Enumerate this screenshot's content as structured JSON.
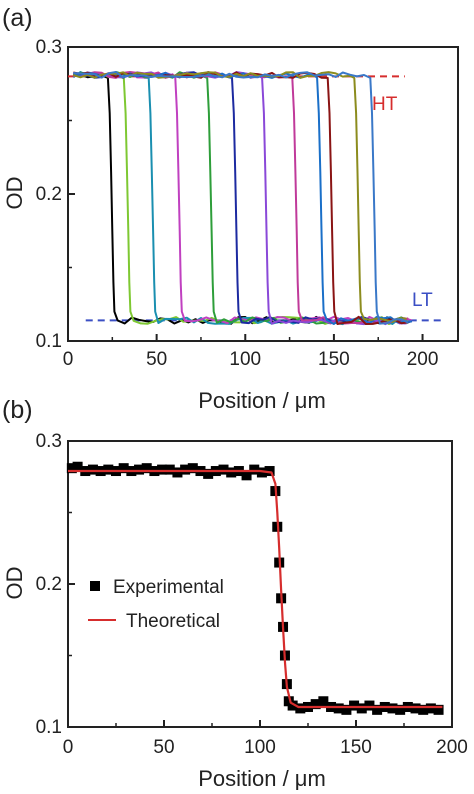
{
  "chart_data": [
    {
      "type": "line",
      "panel_label": "(a)",
      "xlabel": "Position / μm",
      "ylabel": "OD",
      "xlim": [
        0,
        220
      ],
      "ylim": [
        0.1,
        0.3
      ],
      "xticks": [
        0,
        50,
        100,
        150,
        200
      ],
      "yticks": [
        0.1,
        0.2,
        0.3
      ],
      "xtick_labels": [
        "0",
        "50",
        "100",
        "150",
        "200"
      ],
      "ytick_labels": [
        "0.1",
        "0.2",
        "0.3"
      ],
      "grid": false,
      "colors": [
        "#000000",
        "#7ec832",
        "#1a8fb0",
        "#c040c0",
        "#2e9e3a",
        "#1c2aa0",
        "#8a48d8",
        "#c03a9a",
        "#1a6fc8",
        "#8a1414",
        "#8c8c1e",
        "#3a78c8"
      ],
      "transition_positions": [
        24,
        33,
        47,
        62,
        80,
        94,
        111,
        128,
        142,
        148,
        163,
        172
      ],
      "high_level": 0.281,
      "low_level": 0.114,
      "reference_lines": [
        {
          "label": "HT",
          "y": 0.28,
          "x_range": [
            0,
            190
          ],
          "color": "#d62d2d"
        },
        {
          "label": "LT",
          "y": 0.114,
          "x_range": [
            10,
            212
          ],
          "color": "#3b4fc4"
        }
      ]
    },
    {
      "type": "scatter",
      "panel_label": "(b)",
      "xlabel": "Position / μm",
      "ylabel": "OD",
      "xlim": [
        0,
        200
      ],
      "ylim": [
        0.1,
        0.3
      ],
      "xticks": [
        0,
        50,
        100,
        150,
        200
      ],
      "yticks": [
        0.1,
        0.2,
        0.3
      ],
      "xtick_labels": [
        "0",
        "50",
        "100",
        "150",
        "200"
      ],
      "ytick_labels": [
        "0.1",
        "0.2",
        "0.3"
      ],
      "grid": false,
      "legend": "center-left",
      "series": [
        {
          "name": "Experimental",
          "marker": "square",
          "color": "#000000",
          "x": [
            2,
            5,
            9,
            13,
            17,
            21,
            25,
            29,
            33,
            37,
            41,
            45,
            49,
            53,
            57,
            61,
            65,
            69,
            73,
            77,
            81,
            85,
            89,
            93,
            97,
            101,
            105,
            108,
            109,
            110,
            111,
            112,
            113,
            114,
            115,
            117,
            121,
            125,
            129,
            133,
            137,
            141,
            145,
            149,
            153,
            157,
            161,
            165,
            169,
            173,
            177,
            181,
            185,
            189,
            193
          ],
          "y": [
            0.281,
            0.282,
            0.279,
            0.28,
            0.279,
            0.28,
            0.279,
            0.281,
            0.279,
            0.28,
            0.281,
            0.279,
            0.28,
            0.28,
            0.278,
            0.28,
            0.281,
            0.279,
            0.277,
            0.279,
            0.28,
            0.278,
            0.279,
            0.276,
            0.28,
            0.278,
            0.279,
            0.265,
            0.24,
            0.215,
            0.19,
            0.17,
            0.15,
            0.13,
            0.118,
            0.115,
            0.113,
            0.114,
            0.116,
            0.118,
            0.114,
            0.113,
            0.112,
            0.115,
            0.113,
            0.115,
            0.112,
            0.114,
            0.113,
            0.112,
            0.114,
            0.113,
            0.112,
            0.113,
            0.112
          ]
        },
        {
          "name": "Theoretical",
          "color": "#d62d2d",
          "x": [
            0,
            100,
            106,
            108,
            109,
            110,
            111,
            112,
            113,
            114,
            116,
            120,
            150,
            195
          ],
          "y": [
            0.279,
            0.279,
            0.278,
            0.27,
            0.25,
            0.225,
            0.196,
            0.17,
            0.145,
            0.128,
            0.117,
            0.114,
            0.114,
            0.114
          ]
        }
      ]
    }
  ]
}
